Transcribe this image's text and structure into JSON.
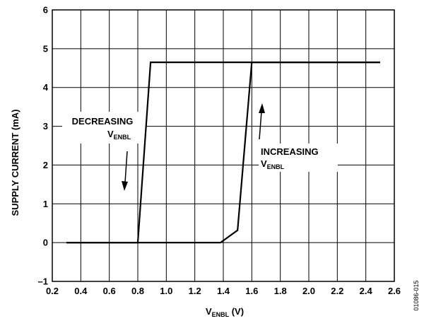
{
  "chart_data": {
    "type": "line",
    "xlabel": {
      "main": "V",
      "sub": "ENBL",
      "suffix": " (V)"
    },
    "ylabel": "SUPPLY CURRENT (mA)",
    "xlim": [
      0.2,
      2.6
    ],
    "ylim": [
      -1,
      6
    ],
    "xticks": [
      0.2,
      0.4,
      0.6,
      0.8,
      1.0,
      1.2,
      1.4,
      1.6,
      1.8,
      2.0,
      2.2,
      2.4,
      2.6
    ],
    "xtick_labels": [
      "0.2",
      "0.4",
      "0.6",
      "0.8",
      "1.0",
      "1.2",
      "1.4",
      "1.6",
      "1.8",
      "2.0",
      "2.2",
      "2.4",
      "2.6"
    ],
    "yticks": [
      -1,
      0,
      1,
      2,
      3,
      4,
      5,
      6
    ],
    "ytick_labels": [
      "–1",
      "0",
      "1",
      "2",
      "3",
      "4",
      "5",
      "6"
    ],
    "grid": true,
    "series": [
      {
        "x": [
          0.3,
          0.8,
          0.89,
          2.5
        ],
        "y": [
          0,
          0,
          4.65,
          4.65
        ]
      },
      {
        "x": [
          0.3,
          1.38,
          1.5,
          1.6,
          2.5
        ],
        "y": [
          0,
          0,
          0.32,
          4.65,
          4.65
        ]
      }
    ],
    "annotations": [
      {
        "line1": "DECREASING",
        "main": "V",
        "sub": "ENBL",
        "arrow": "down"
      },
      {
        "line1": "INCREASING",
        "main": "V",
        "sub": "ENBL",
        "arrow": "up"
      }
    ],
    "figure_id": "01086-015"
  }
}
